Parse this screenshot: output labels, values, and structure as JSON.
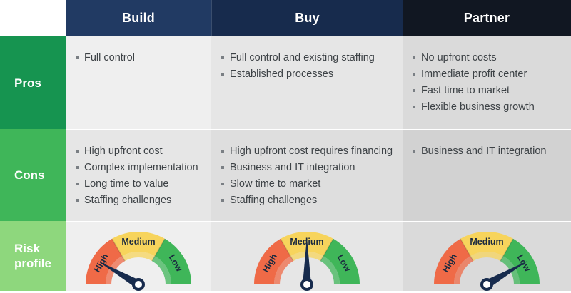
{
  "columns": [
    {
      "label": "Build",
      "color": "#213a63"
    },
    {
      "label": "Buy",
      "color": "#172b4d"
    },
    {
      "label": "Partner",
      "color": "#111722"
    }
  ],
  "rows": {
    "pros": {
      "label": "Pros",
      "color": "#169450"
    },
    "cons": {
      "label": "Cons",
      "color": "#3fb659"
    },
    "risk": {
      "label": "Risk profile",
      "color": "#8ed77d"
    }
  },
  "cells": {
    "pros": [
      [
        "Full control"
      ],
      [
        "Full control and existing staffing",
        "Established processes"
      ],
      [
        "No upfront costs",
        "Immediate profit center",
        "Fast time to market",
        "Flexible business growth"
      ]
    ],
    "cons": [
      [
        "High upfront cost",
        "Complex implementation",
        "Long time to value",
        "Staffing challenges"
      ],
      [
        "High upfront cost requires financing",
        "Business and IT integration",
        "Slow time to market",
        "Staffing challenges"
      ],
      [
        "Business and IT integration"
      ]
    ]
  },
  "gauge": {
    "labels": {
      "high": "High",
      "medium": "Medium",
      "low": "Low"
    },
    "colors": {
      "high": "#ef6a47",
      "medium": "#f7d45c",
      "low": "#3fb659",
      "needle": "#172b4d"
    },
    "levels": [
      {
        "column": "Build",
        "level": "high"
      },
      {
        "column": "Buy",
        "level": "medium"
      },
      {
        "column": "Partner",
        "level": "low"
      }
    ]
  }
}
